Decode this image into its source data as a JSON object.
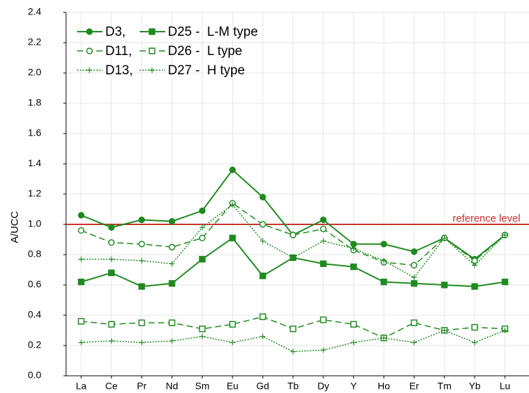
{
  "chart_data": {
    "type": "line",
    "y_label": "A/UCC",
    "categories": [
      "La",
      "Ce",
      "Pr",
      "Nd",
      "Sm",
      "Eu",
      "Gd",
      "Tb",
      "Dy",
      "Y",
      "Ho",
      "Er",
      "Tm",
      "Yb",
      "Lu"
    ],
    "series": [
      {
        "name": "D3,",
        "color": "#1f8a1f",
        "dash": "solid",
        "marker": "circle-filled",
        "values": [
          1.06,
          0.98,
          1.03,
          1.02,
          1.09,
          1.36,
          1.18,
          0.93,
          1.03,
          0.87,
          0.87,
          0.82,
          0.91,
          0.77,
          0.93
        ]
      },
      {
        "name": "D25 -  L-M type",
        "color": "#1f8a1f",
        "dash": "solid",
        "marker": "square-filled",
        "values": [
          0.62,
          0.68,
          0.59,
          0.61,
          0.77,
          0.91,
          0.66,
          0.78,
          0.74,
          0.72,
          0.62,
          0.61,
          0.6,
          0.59,
          0.62
        ]
      },
      {
        "name": "D11,",
        "color": "#1f8a1f",
        "dash": "dashed",
        "marker": "circle-open",
        "values": [
          0.96,
          0.88,
          0.87,
          0.85,
          0.91,
          1.14,
          1.0,
          0.93,
          0.97,
          0.83,
          0.75,
          0.73,
          0.91,
          0.76,
          0.93
        ]
      },
      {
        "name": "D26 -  L type",
        "color": "#1f8a1f",
        "dash": "dashed",
        "marker": "square-open",
        "values": [
          0.36,
          0.34,
          0.35,
          0.35,
          0.31,
          0.34,
          0.39,
          0.31,
          0.37,
          0.34,
          0.25,
          0.35,
          0.3,
          0.32,
          0.31
        ]
      },
      {
        "name": "D13,",
        "color": "#1f8a1f",
        "dash": "dotted",
        "marker": "plus",
        "values": [
          0.77,
          0.77,
          0.76,
          0.74,
          0.98,
          1.13,
          0.89,
          0.78,
          0.89,
          0.84,
          0.76,
          0.65,
          0.91,
          0.73,
          0.93
        ]
      },
      {
        "name": "D27 -  H type",
        "color": "#1f8a1f",
        "dash": "dotted",
        "marker": "plus",
        "values": [
          0.22,
          0.23,
          0.22,
          0.23,
          0.26,
          0.22,
          0.26,
          0.16,
          0.17,
          0.22,
          0.25,
          0.22,
          0.3,
          0.22,
          0.3
        ]
      }
    ],
    "reference_line": {
      "value": 1,
      "label": "reference level",
      "color": "#c8322a"
    },
    "ylim": [
      0,
      2.4
    ],
    "yticks": [
      {
        "value": 0,
        "label": "0.0"
      },
      0.2,
      0.4,
      0.6,
      0.8,
      {
        "value": 1,
        "label": "1.0"
      },
      1.2,
      1.4,
      1.6,
      1.8,
      {
        "value": 2,
        "label": "2.0"
      },
      2.2,
      2.4
    ],
    "grid": true,
    "legend": "top-left"
  }
}
